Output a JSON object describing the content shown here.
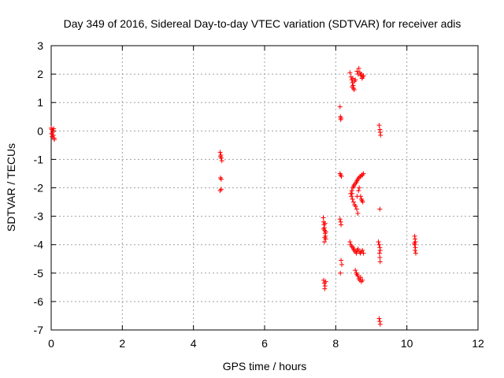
{
  "chart_data": {
    "type": "scatter",
    "title": "Day 349 of 2016, Sidereal Day-to-day VTEC variation (SDTVAR) for receiver adis",
    "xlabel": "GPS time / hours",
    "ylabel": "SDTVAR / TECUs",
    "xlim": [
      0,
      12
    ],
    "ylim": [
      -7,
      3
    ],
    "xticks": [
      "0",
      "2",
      "4",
      "6",
      "8",
      "10",
      "12"
    ],
    "yticks": [
      "-7",
      "-6",
      "-5",
      "-4",
      "-3",
      "-2",
      "-1",
      "0",
      "1",
      "2",
      "3"
    ],
    "grid": true,
    "marker": "+",
    "color": "#ff0000",
    "series": [
      {
        "points": [
          [
            0.0,
            0.1
          ],
          [
            0.02,
            0.05
          ],
          [
            0.04,
            -0.05
          ],
          [
            0.06,
            -0.15
          ],
          [
            0.08,
            -0.25
          ],
          [
            0.05,
            0.0
          ],
          [
            0.07,
            0.08
          ],
          [
            0.03,
            -0.2
          ],
          [
            0.01,
            -0.1
          ],
          [
            0.09,
            -0.3
          ],
          [
            4.75,
            -0.75
          ],
          [
            4.77,
            -0.85
          ],
          [
            4.78,
            -0.95
          ],
          [
            4.8,
            -1.05
          ],
          [
            4.76,
            -0.9
          ],
          [
            4.78,
            -1.7
          ],
          [
            4.76,
            -1.65
          ],
          [
            4.78,
            -2.05
          ],
          [
            4.75,
            -2.1
          ],
          [
            7.65,
            -3.05
          ],
          [
            7.66,
            -3.2
          ],
          [
            7.67,
            -3.3
          ],
          [
            7.68,
            -3.4
          ],
          [
            7.69,
            -3.5
          ],
          [
            7.7,
            -3.6
          ],
          [
            7.71,
            -3.7
          ],
          [
            7.72,
            -3.8
          ],
          [
            7.68,
            -3.9
          ],
          [
            7.66,
            -3.45
          ],
          [
            7.7,
            -3.25
          ],
          [
            7.72,
            -3.55
          ],
          [
            7.69,
            -3.75
          ],
          [
            7.66,
            -5.25
          ],
          [
            7.68,
            -5.35
          ],
          [
            7.7,
            -5.45
          ],
          [
            7.72,
            -5.3
          ],
          [
            7.69,
            -5.55
          ],
          [
            8.12,
            0.85
          ],
          [
            8.13,
            0.5
          ],
          [
            8.15,
            0.45
          ],
          [
            8.14,
            0.4
          ],
          [
            8.12,
            -1.5
          ],
          [
            8.14,
            -1.55
          ],
          [
            8.16,
            -1.6
          ],
          [
            8.12,
            -3.1
          ],
          [
            8.14,
            -3.2
          ],
          [
            8.15,
            -3.3
          ],
          [
            8.15,
            -4.55
          ],
          [
            8.17,
            -4.7
          ],
          [
            8.13,
            -5.0
          ],
          [
            8.4,
            2.05
          ],
          [
            8.43,
            1.9
          ],
          [
            8.45,
            1.8
          ],
          [
            8.47,
            1.7
          ],
          [
            8.49,
            1.6
          ],
          [
            8.5,
            1.5
          ],
          [
            8.52,
            1.45
          ],
          [
            8.48,
            1.85
          ],
          [
            8.46,
            1.55
          ],
          [
            8.53,
            1.75
          ],
          [
            8.55,
            1.8
          ],
          [
            8.6,
            2.1
          ],
          [
            8.63,
            2.0
          ],
          [
            8.65,
            2.2
          ],
          [
            8.68,
            2.05
          ],
          [
            8.7,
            1.95
          ],
          [
            8.72,
            2.0
          ],
          [
            8.74,
            1.85
          ],
          [
            8.76,
            1.9
          ],
          [
            8.78,
            1.95
          ],
          [
            8.42,
            -2.2
          ],
          [
            8.45,
            -2.1
          ],
          [
            8.48,
            -2.0
          ],
          [
            8.5,
            -1.95
          ],
          [
            8.52,
            -1.9
          ],
          [
            8.55,
            -1.85
          ],
          [
            8.58,
            -1.8
          ],
          [
            8.6,
            -1.75
          ],
          [
            8.62,
            -1.7
          ],
          [
            8.65,
            -1.65
          ],
          [
            8.68,
            -1.6
          ],
          [
            8.7,
            -1.6
          ],
          [
            8.73,
            -1.55
          ],
          [
            8.75,
            -1.55
          ],
          [
            8.78,
            -1.5
          ],
          [
            8.44,
            -2.3
          ],
          [
            8.47,
            -2.4
          ],
          [
            8.5,
            -2.5
          ],
          [
            8.53,
            -2.6
          ],
          [
            8.56,
            -2.65
          ],
          [
            8.59,
            -2.75
          ],
          [
            8.62,
            -2.9
          ],
          [
            8.46,
            -2.2
          ],
          [
            8.6,
            -2.3
          ],
          [
            8.64,
            -2.1
          ],
          [
            8.7,
            -2.3
          ],
          [
            8.72,
            -2.4
          ],
          [
            8.74,
            -2.45
          ],
          [
            8.76,
            -2.5
          ],
          [
            8.66,
            -2.0
          ],
          [
            8.4,
            -3.9
          ],
          [
            8.42,
            -4.0
          ],
          [
            8.45,
            -4.05
          ],
          [
            8.48,
            -4.1
          ],
          [
            8.5,
            -4.15
          ],
          [
            8.52,
            -4.2
          ],
          [
            8.55,
            -4.25
          ],
          [
            8.58,
            -4.3
          ],
          [
            8.6,
            -4.2
          ],
          [
            8.63,
            -4.15
          ],
          [
            8.66,
            -4.25
          ],
          [
            8.69,
            -4.3
          ],
          [
            8.72,
            -4.25
          ],
          [
            8.75,
            -4.2
          ],
          [
            8.78,
            -4.3
          ],
          [
            8.55,
            -4.9
          ],
          [
            8.58,
            -5.0
          ],
          [
            8.62,
            -5.1
          ],
          [
            8.65,
            -5.2
          ],
          [
            8.68,
            -5.25
          ],
          [
            8.72,
            -5.3
          ],
          [
            8.75,
            -5.25
          ],
          [
            8.6,
            -5.05
          ],
          [
            8.7,
            -5.15
          ],
          [
            9.22,
            0.2
          ],
          [
            9.24,
            0.05
          ],
          [
            9.25,
            -0.05
          ],
          [
            9.26,
            -0.15
          ],
          [
            9.24,
            -2.75
          ],
          [
            9.2,
            -3.9
          ],
          [
            9.22,
            -4.0
          ],
          [
            9.24,
            -4.1
          ],
          [
            9.25,
            -4.2
          ],
          [
            9.23,
            -4.3
          ],
          [
            9.24,
            -4.45
          ],
          [
            9.25,
            -4.6
          ],
          [
            9.22,
            -6.6
          ],
          [
            9.24,
            -6.7
          ],
          [
            9.25,
            -6.8
          ],
          [
            10.22,
            -3.7
          ],
          [
            10.23,
            -3.8
          ],
          [
            10.24,
            -3.9
          ],
          [
            10.22,
            -4.0
          ],
          [
            10.24,
            -4.1
          ],
          [
            10.23,
            -4.2
          ],
          [
            10.25,
            -4.3
          ],
          [
            10.21,
            -3.95
          ]
        ]
      }
    ]
  }
}
